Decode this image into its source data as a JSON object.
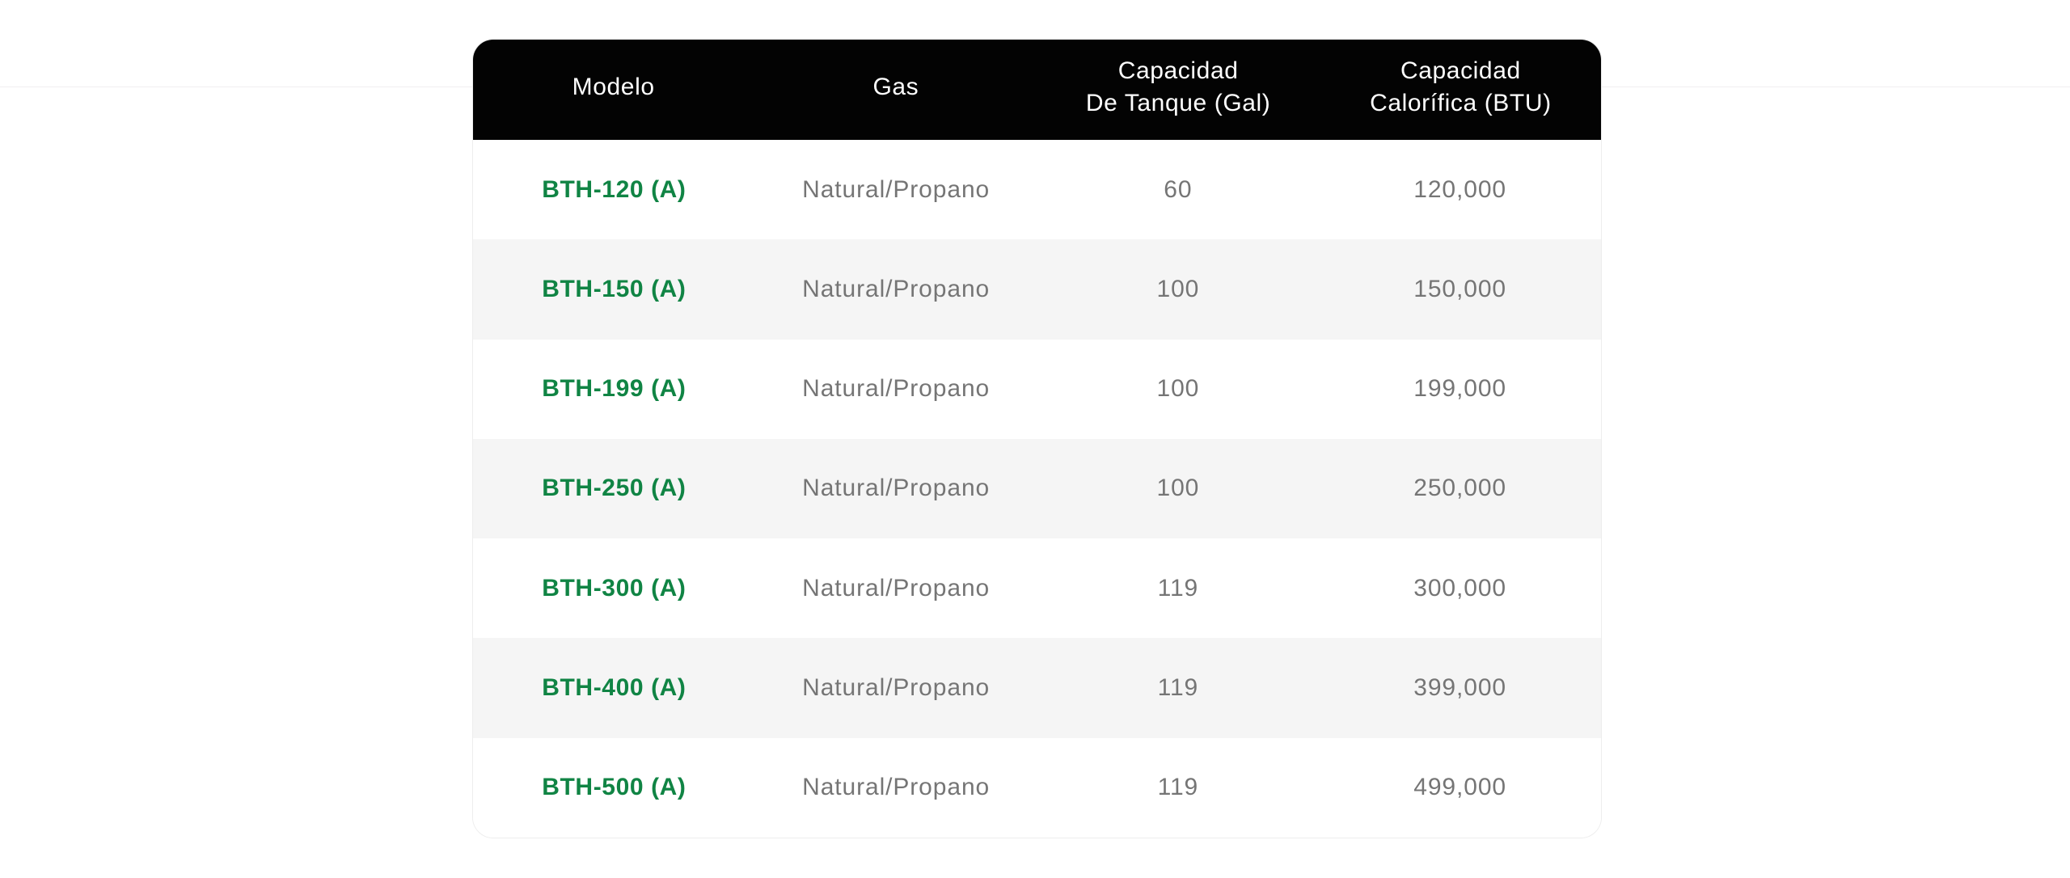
{
  "page": {
    "background_color": "#ffffff",
    "divider_line_color": "#f1eff0"
  },
  "table": {
    "colors": {
      "header_bg": "#030303",
      "header_text": "#ffffff",
      "accent_green": "#108444",
      "body_text": "#757575",
      "stripe_bg": "#f5f5f5",
      "card_border": "#ededed"
    },
    "header": {
      "columns": [
        {
          "label": "Modelo"
        },
        {
          "label": "Gas"
        },
        {
          "label": "Capacidad\nDe Tanque (Gal)"
        },
        {
          "label": "Capacidad\nCalorífica (BTU)"
        }
      ]
    },
    "rows": [
      {
        "model": "BTH-120 (A)",
        "gas": "Natural/Propano",
        "tank_gal": "60",
        "btu": "120,000"
      },
      {
        "model": "BTH-150 (A)",
        "gas": "Natural/Propano",
        "tank_gal": "100",
        "btu": "150,000"
      },
      {
        "model": "BTH-199 (A)",
        "gas": "Natural/Propano",
        "tank_gal": "100",
        "btu": "199,000"
      },
      {
        "model": "BTH-250 (A)",
        "gas": "Natural/Propano",
        "tank_gal": "100",
        "btu": "250,000"
      },
      {
        "model": "BTH-300 (A)",
        "gas": "Natural/Propano",
        "tank_gal": "119",
        "btu": "300,000"
      },
      {
        "model": "BTH-400 (A)",
        "gas": "Natural/Propano",
        "tank_gal": "119",
        "btu": "399,000"
      },
      {
        "model": "BTH-500 (A)",
        "gas": "Natural/Propano",
        "tank_gal": "119",
        "btu": "499,000"
      }
    ]
  }
}
